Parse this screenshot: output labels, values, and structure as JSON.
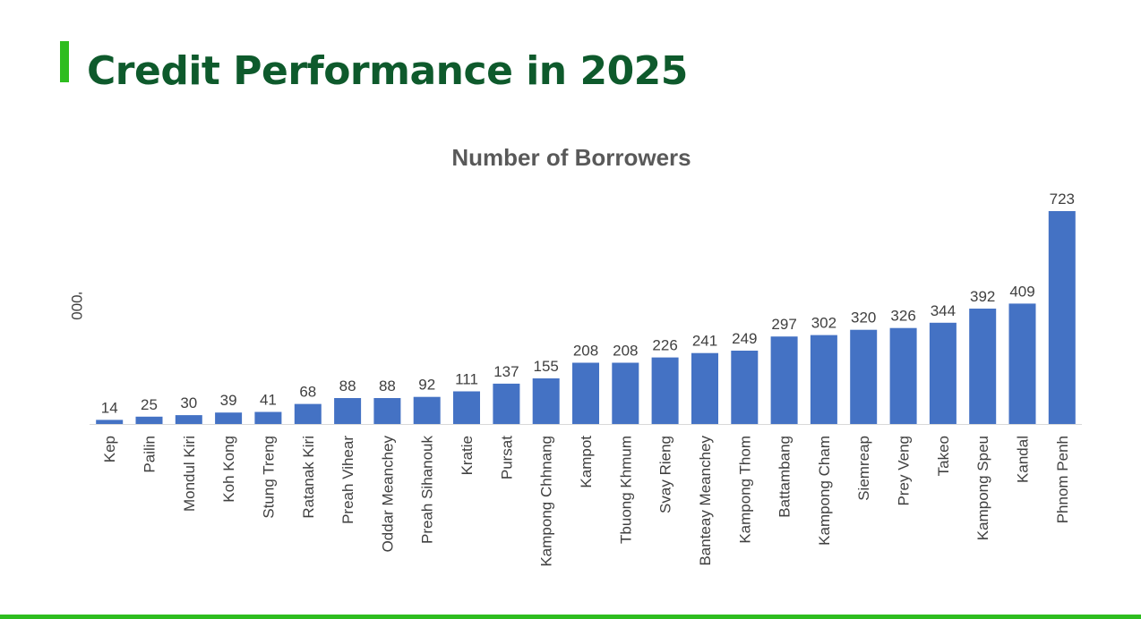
{
  "page": {
    "title": "Credit Performance in 2025",
    "accent_color": "#2ebd1f",
    "title_color": "#0e5a2c"
  },
  "chart_data": {
    "type": "bar",
    "title": "Number of Borrowers",
    "ylabel": "'000",
    "xlabel": "",
    "bar_color": "#4472c4",
    "ylim": [
      0,
      723
    ],
    "grid": false,
    "legend": "none",
    "categories": [
      "Kep",
      "Pailin",
      "Mondul Kiri",
      "Koh Kong",
      "Stung Treng",
      "Ratanak Kiri",
      "Preah Vihear",
      "Oddar Meanchey",
      "Preah Sihanouk",
      "Kratie",
      "Pursat",
      "Kampong Chhnang",
      "Kampot",
      "Tbuong Khmum",
      "Svay Rieng",
      "Banteay Meanchey",
      "Kampong Thom",
      "Battambang",
      "Kampong Cham",
      "Siemreap",
      "Prey Veng",
      "Takeo",
      "Kampong Speu",
      "Kandal",
      "Phnom Penh"
    ],
    "values": [
      14,
      25,
      30,
      39,
      41,
      68,
      88,
      88,
      92,
      111,
      137,
      155,
      208,
      208,
      226,
      241,
      249,
      297,
      302,
      320,
      326,
      344,
      392,
      409,
      723
    ]
  }
}
